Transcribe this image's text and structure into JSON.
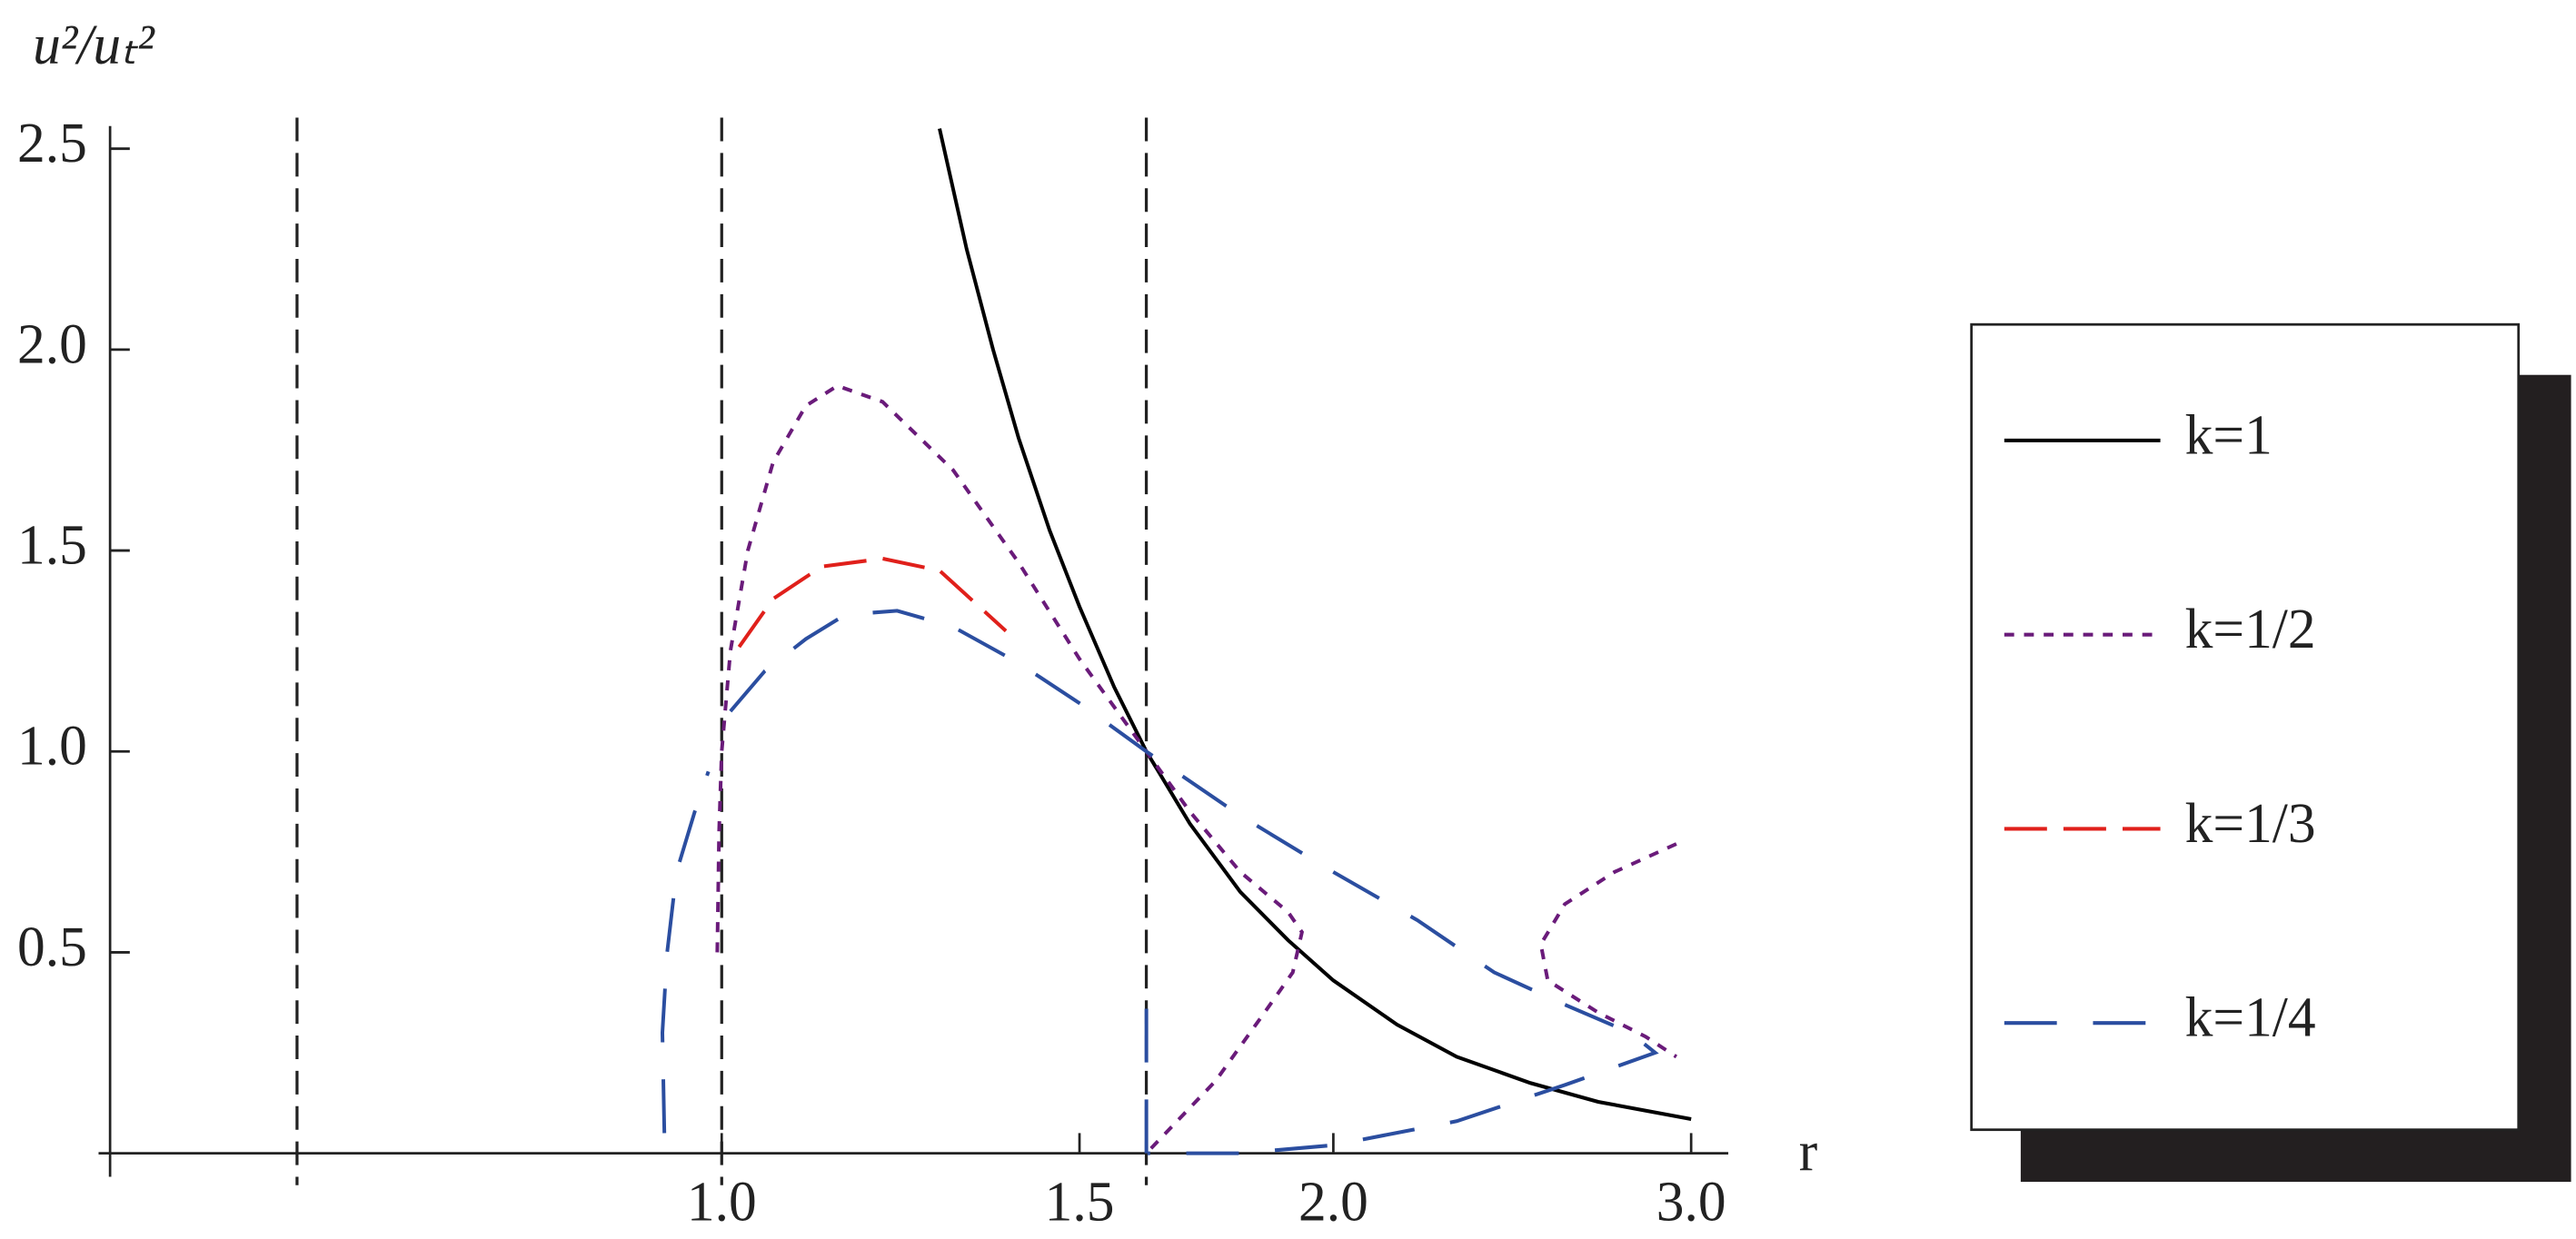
{
  "chart_data": {
    "type": "line",
    "y_label": "u²/uₜ²",
    "x_label": "r",
    "xscale": "log",
    "xlim": [
      0.5,
      3.1
    ],
    "ylim": [
      0,
      2.55
    ],
    "xticks": [
      {
        "value": 1,
        "label": "1.0"
      },
      1.5,
      {
        "value": 2,
        "label": "2.0"
      },
      {
        "value": 3,
        "label": "3.0"
      }
    ],
    "yticks": [
      0.5,
      {
        "value": 1,
        "label": "1.0"
      },
      1.5,
      {
        "value": 2,
        "label": "2.0"
      },
      2.5
    ],
    "vertical_lines": [
      0.618,
      1.0,
      1.618
    ],
    "legend": "right",
    "series": [
      {
        "name": "k=1",
        "color": "#000000",
        "x": [
          1.28,
          1.32,
          1.36,
          1.4,
          1.45,
          1.5,
          1.56,
          1.618,
          1.7,
          1.8,
          1.9,
          2.0,
          2.15,
          2.3,
          2.5,
          2.7,
          3.0
        ],
        "values": [
          2.55,
          2.25,
          2.0,
          1.78,
          1.55,
          1.36,
          1.16,
          1.0,
          0.82,
          0.65,
          0.53,
          0.43,
          0.32,
          0.24,
          0.175,
          0.128,
          0.085
        ]
      },
      {
        "name": "k=1/2",
        "color": "#6a1b7a",
        "x": [
          0.995,
          0.997,
          1.0,
          1.01,
          1.03,
          1.06,
          1.1,
          1.14,
          1.2,
          1.3,
          1.4,
          1.5,
          1.618,
          1.7,
          1.8,
          1.9,
          1.93,
          1.91,
          1.85,
          1.75,
          1.618,
          null,
          2.95,
          2.75,
          2.6,
          2.53,
          2.55,
          2.7,
          2.85,
          2.95
        ],
        "values": [
          0.5,
          0.8,
          1.0,
          1.25,
          1.5,
          1.72,
          1.86,
          1.91,
          1.87,
          1.7,
          1.47,
          1.23,
          1.0,
          0.85,
          0.7,
          0.6,
          0.55,
          0.45,
          0.35,
          0.18,
          0.0,
          null,
          0.77,
          0.7,
          0.62,
          0.52,
          0.43,
          0.35,
          0.29,
          0.24
        ]
      },
      {
        "name": "k=1/3",
        "color": "#e0201b",
        "x": [
          1.02,
          1.06,
          1.12,
          1.2,
          1.28,
          1.38
        ],
        "values": [
          1.26,
          1.38,
          1.46,
          1.48,
          1.45,
          1.3
        ]
      },
      {
        "name": "k=1/4",
        "color": "#2b4ea0",
        "x": [
          0.937,
          0.935,
          0.94,
          0.95,
          0.97,
          0.985,
          null,
          1.01,
          1.05,
          1.1,
          1.15,
          1.22,
          1.3,
          1.4,
          1.5,
          1.618,
          1.8,
          2.0,
          2.2,
          2.4,
          2.6,
          2.8,
          2.88,
          2.6,
          2.3,
          2.0,
          1.8,
          1.62,
          null,
          1.618,
          1.618
        ],
        "values": [
          0.05,
          0.3,
          0.5,
          0.7,
          0.85,
          0.95,
          null,
          1.1,
          1.2,
          1.28,
          1.34,
          1.35,
          1.31,
          1.22,
          1.12,
          1.0,
          0.84,
          0.7,
          0.58,
          0.45,
          0.37,
          0.3,
          0.25,
          0.17,
          0.08,
          0.02,
          0.0,
          0.0,
          null,
          0.0,
          0.38
        ]
      }
    ]
  }
}
